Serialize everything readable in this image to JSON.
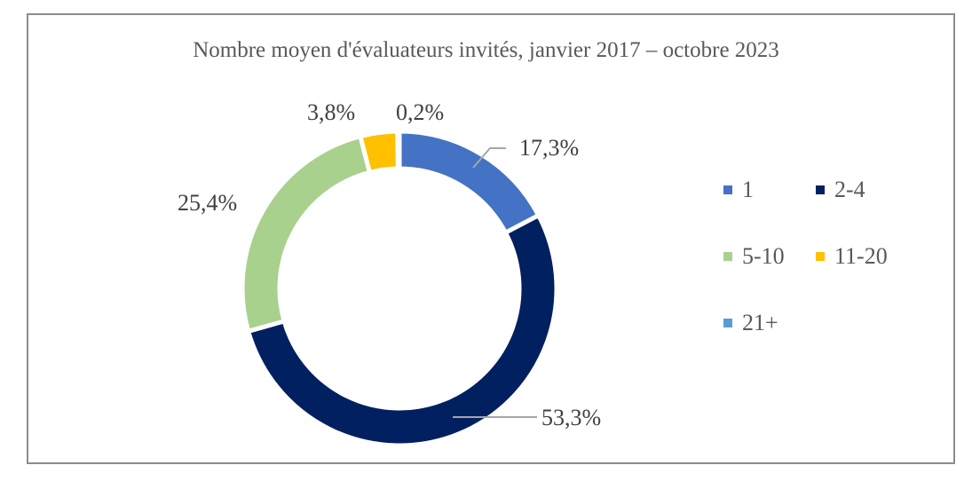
{
  "chart_data": {
    "type": "pie",
    "variant": "donut",
    "title": "Nombre moyen d'évaluateurs invités, janvier 2017 – octobre 2023",
    "categories": [
      "1",
      "2-4",
      "5-10",
      "11-20",
      "21+"
    ],
    "values": [
      17.3,
      53.3,
      25.4,
      3.8,
      0.2
    ],
    "data_labels": [
      "17,3%",
      "53,3%",
      "25,4%",
      "3,8%",
      "0,2%"
    ],
    "colors": [
      "#4472c4",
      "#002060",
      "#a9d18e",
      "#ffc000",
      "#5b9bd5"
    ],
    "legend_position": "right"
  }
}
